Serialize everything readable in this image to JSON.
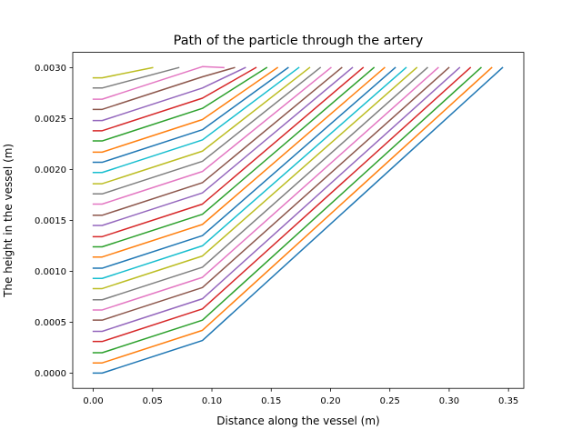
{
  "chart_data": {
    "type": "line",
    "title": "Path of the particle through the artery",
    "xlabel": "Distance along the vessel (m)",
    "ylabel": "The height in the vessel (m)",
    "xlim": [
      -0.0173,
      0.3629
    ],
    "ylim": [
      -0.00015,
      0.00315
    ],
    "x_ticks": [
      0.0,
      0.05,
      0.1,
      0.15,
      0.2,
      0.25,
      0.3,
      0.35
    ],
    "x_tick_labels": [
      "0.00",
      "0.05",
      "0.10",
      "0.15",
      "0.20",
      "0.25",
      "0.30",
      "0.35"
    ],
    "y_ticks": [
      0.0,
      0.0005,
      0.001,
      0.0015,
      0.002,
      0.0025,
      0.003
    ],
    "y_tick_labels": [
      "0.0000",
      "0.0005",
      "0.0010",
      "0.0015",
      "0.0020",
      "0.0025",
      "0.0030"
    ],
    "grid": false,
    "legend": "none",
    "series_colors": [
      "#1f77b4",
      "#ff7f0e",
      "#2ca02c",
      "#d62728",
      "#9467bd",
      "#8c564b",
      "#e377c2",
      "#7f7f7f",
      "#bcbd22",
      "#17becf"
    ],
    "series": [
      {
        "x": [
          0.0,
          0.0075,
          0.092,
          0.3449
        ],
        "y": [
          0.0,
          0.0,
          0.00032,
          0.003
        ]
      },
      {
        "x": [
          0.0,
          0.0075,
          0.092,
          0.3358
        ],
        "y": [
          0.0001,
          0.0001,
          0.00042,
          0.003
        ]
      },
      {
        "x": [
          0.0,
          0.0075,
          0.092,
          0.3268
        ],
        "y": [
          0.0002,
          0.0002,
          0.00052,
          0.003
        ]
      },
      {
        "x": [
          0.0,
          0.0075,
          0.092,
          0.3178
        ],
        "y": [
          0.00031,
          0.00031,
          0.00063,
          0.003
        ]
      },
      {
        "x": [
          0.0,
          0.0075,
          0.092,
          0.3087
        ],
        "y": [
          0.00041,
          0.00041,
          0.00073,
          0.003
        ]
      },
      {
        "x": [
          0.0,
          0.0075,
          0.092,
          0.2997
        ],
        "y": [
          0.00052,
          0.00052,
          0.00084,
          0.003
        ]
      },
      {
        "x": [
          0.0,
          0.0075,
          0.092,
          0.2907
        ],
        "y": [
          0.00062,
          0.00062,
          0.00094,
          0.003
        ]
      },
      {
        "x": [
          0.0,
          0.0075,
          0.092,
          0.2816
        ],
        "y": [
          0.00072,
          0.00072,
          0.00104,
          0.003
        ]
      },
      {
        "x": [
          0.0,
          0.0075,
          0.092,
          0.2726
        ],
        "y": [
          0.00083,
          0.00083,
          0.00115,
          0.003
        ]
      },
      {
        "x": [
          0.0,
          0.0075,
          0.092,
          0.2636
        ],
        "y": [
          0.00093,
          0.00093,
          0.00125,
          0.003
        ]
      },
      {
        "x": [
          0.0,
          0.0075,
          0.092,
          0.2545
        ],
        "y": [
          0.00103,
          0.00103,
          0.00135,
          0.003
        ]
      },
      {
        "x": [
          0.0,
          0.0075,
          0.092,
          0.2455
        ],
        "y": [
          0.00114,
          0.00114,
          0.00146,
          0.003
        ]
      },
      {
        "x": [
          0.0,
          0.0075,
          0.092,
          0.2365
        ],
        "y": [
          0.00124,
          0.00124,
          0.00156,
          0.003
        ]
      },
      {
        "x": [
          0.0,
          0.0075,
          0.092,
          0.2274
        ],
        "y": [
          0.00134,
          0.00134,
          0.00166,
          0.003
        ]
      },
      {
        "x": [
          0.0,
          0.0075,
          0.092,
          0.2184
        ],
        "y": [
          0.00145,
          0.00145,
          0.00177,
          0.003
        ]
      },
      {
        "x": [
          0.0,
          0.0075,
          0.092,
          0.2094
        ],
        "y": [
          0.00155,
          0.00155,
          0.00187,
          0.003
        ]
      },
      {
        "x": [
          0.0,
          0.0075,
          0.092,
          0.2003
        ],
        "y": [
          0.00166,
          0.00166,
          0.00198,
          0.003
        ]
      },
      {
        "x": [
          0.0,
          0.0075,
          0.092,
          0.1913
        ],
        "y": [
          0.00176,
          0.00176,
          0.00208,
          0.003
        ]
      },
      {
        "x": [
          0.0,
          0.0075,
          0.092,
          0.1823
        ],
        "y": [
          0.00186,
          0.00186,
          0.00218,
          0.003
        ]
      },
      {
        "x": [
          0.0,
          0.0075,
          0.092,
          0.1732
        ],
        "y": [
          0.00197,
          0.00197,
          0.00229,
          0.003
        ]
      },
      {
        "x": [
          0.0,
          0.0075,
          0.092,
          0.1642
        ],
        "y": [
          0.00207,
          0.00207,
          0.00239,
          0.003
        ]
      },
      {
        "x": [
          0.0,
          0.0075,
          0.092,
          0.1552
        ],
        "y": [
          0.00217,
          0.00217,
          0.00249,
          0.003
        ]
      },
      {
        "x": [
          0.0,
          0.0075,
          0.092,
          0.1461
        ],
        "y": [
          0.00228,
          0.00228,
          0.0026,
          0.003
        ]
      },
      {
        "x": [
          0.0,
          0.0075,
          0.092,
          0.1371
        ],
        "y": [
          0.00238,
          0.00238,
          0.0027,
          0.003
        ]
      },
      {
        "x": [
          0.0,
          0.0075,
          0.092,
          0.1281
        ],
        "y": [
          0.00248,
          0.00248,
          0.0028,
          0.003
        ]
      },
      {
        "x": [
          0.0,
          0.0075,
          0.092,
          0.119
        ],
        "y": [
          0.00259,
          0.00259,
          0.00291,
          0.003
        ]
      },
      {
        "x": [
          0.0,
          0.0075,
          0.092,
          0.11
        ],
        "y": [
          0.00269,
          0.00269,
          0.00301,
          0.003
        ]
      },
      {
        "x": [
          0.0,
          0.0075,
          0.072
        ],
        "y": [
          0.0028,
          0.0028,
          0.003
        ]
      },
      {
        "x": [
          0.0,
          0.0075,
          0.05
        ],
        "y": [
          0.0029,
          0.0029,
          0.003
        ]
      }
    ]
  }
}
